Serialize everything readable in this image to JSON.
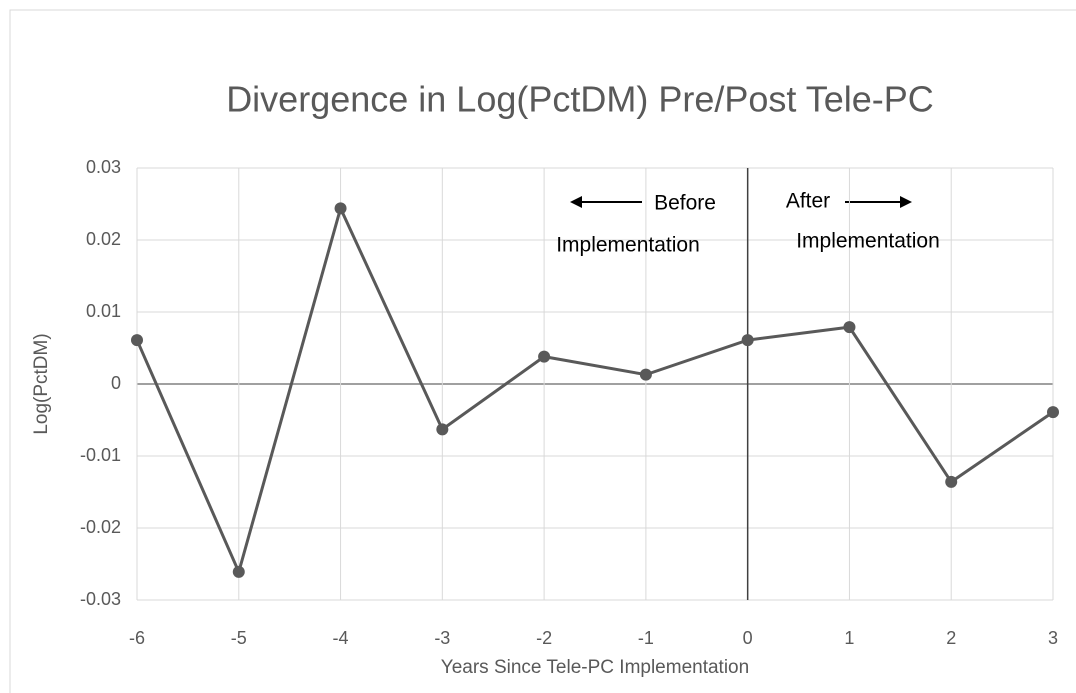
{
  "chart_data": {
    "type": "line",
    "title": "Divergence in Log(PctDM) Pre/Post Tele-PC",
    "xlabel": "Years Since Tele-PC Implementation",
    "ylabel": "Log(PctDM)",
    "annotations": [
      "Before",
      "Implementation",
      "After",
      "Implementation"
    ],
    "x": [
      -6,
      -5,
      -4,
      -3,
      -2,
      -1,
      0,
      1,
      2,
      3
    ],
    "series": [
      {
        "name": "Log(PctDM)",
        "color": "#595959",
        "values": [
          0.0061,
          -0.0261,
          0.0244,
          -0.0063,
          0.0038,
          0.0013,
          0.0061,
          0.0079,
          -0.0136,
          -0.0039
        ]
      }
    ],
    "xlim": [
      -6,
      3
    ],
    "xticks": [
      -6,
      -5,
      -4,
      -3,
      -2,
      -1,
      0,
      1,
      2,
      3
    ],
    "ylim": [
      -0.03,
      0.03
    ],
    "yticks": [
      0.03,
      0.02,
      0.01,
      0,
      -0.01,
      -0.02,
      -0.03
    ],
    "grid": true,
    "vertical_line": 0
  }
}
